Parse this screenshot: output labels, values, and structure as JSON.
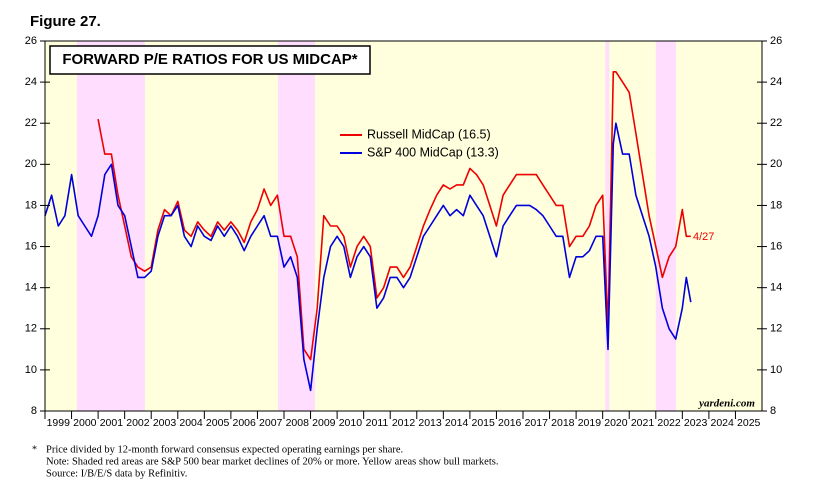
{
  "chart_data": {
    "type": "line",
    "figure_label": "Figure 27.",
    "title": "FORWARD P/E RATIOS FOR US MIDCAP*",
    "annotation": "4/27",
    "source_mark": "yardeni.com",
    "footnotes": [
      "*",
      "Price divided by 12-month forward consensus expected operating earnings per share.",
      "Note: Shaded red areas are S&P 500 bear market declines of 20% or more. Yellow areas show bull markets.",
      "Source: I/B/E/S data by Refinitiv."
    ],
    "xlim": [
      1999,
      2026
    ],
    "xticks": [
      1999,
      2000,
      2001,
      2002,
      2003,
      2004,
      2005,
      2006,
      2007,
      2008,
      2009,
      2010,
      2011,
      2012,
      2013,
      2014,
      2015,
      2016,
      2017,
      2018,
      2019,
      2020,
      2021,
      2022,
      2023,
      2024,
      2025
    ],
    "ylim": [
      8,
      26
    ],
    "yticks": [
      8,
      10,
      12,
      14,
      16,
      18,
      20,
      22,
      24,
      26
    ],
    "bull_color": "#ffffdd",
    "bear_color": "#ffddff",
    "bear_markets": [
      [
        2000.2,
        2002.76
      ],
      [
        2007.77,
        2009.17
      ],
      [
        2020.1,
        2020.25
      ],
      [
        2022.0,
        2022.76
      ]
    ],
    "series": [
      {
        "name": "Russell MidCap (16.5)",
        "color": "#ee0000",
        "x": [
          2001.0,
          2001.1,
          2001.25,
          2001.5,
          2001.75,
          2002.0,
          2002.25,
          2002.5,
          2002.75,
          2003.0,
          2003.25,
          2003.5,
          2003.75,
          2004.0,
          2004.25,
          2004.5,
          2004.75,
          2005.0,
          2005.25,
          2005.5,
          2005.75,
          2006.0,
          2006.25,
          2006.5,
          2006.75,
          2007.0,
          2007.25,
          2007.5,
          2007.75,
          2008.0,
          2008.25,
          2008.5,
          2008.75,
          2009.0,
          2009.25,
          2009.5,
          2009.75,
          2010.0,
          2010.25,
          2010.5,
          2010.75,
          2011.0,
          2011.25,
          2011.5,
          2011.75,
          2012.0,
          2012.25,
          2012.5,
          2012.75,
          2013.0,
          2013.25,
          2013.5,
          2013.75,
          2014.0,
          2014.25,
          2014.5,
          2014.75,
          2015.0,
          2015.25,
          2015.5,
          2015.75,
          2016.0,
          2016.25,
          2016.5,
          2016.75,
          2017.0,
          2017.25,
          2017.5,
          2017.75,
          2018.0,
          2018.25,
          2018.5,
          2018.75,
          2019.0,
          2019.25,
          2019.5,
          2019.75,
          2020.0,
          2020.2,
          2020.4,
          2020.5,
          2020.75,
          2021.0,
          2021.25,
          2021.5,
          2021.75,
          2022.0,
          2022.25,
          2022.5,
          2022.75,
          2023.0,
          2023.15,
          2023.32
        ],
        "values": [
          22.2,
          21.5,
          20.5,
          20.5,
          18.5,
          17.0,
          15.5,
          15.0,
          14.8,
          15.0,
          16.8,
          17.8,
          17.5,
          18.2,
          16.8,
          16.5,
          17.2,
          16.8,
          16.5,
          17.2,
          16.8,
          17.2,
          16.8,
          16.2,
          17.2,
          17.8,
          18.8,
          18.0,
          18.5,
          16.5,
          16.5,
          15.5,
          11.0,
          10.5,
          13.0,
          17.5,
          17.0,
          17.0,
          16.5,
          15.0,
          16.0,
          16.5,
          16.0,
          13.5,
          14.0,
          15.0,
          15.0,
          14.5,
          15.0,
          16.0,
          17.0,
          17.8,
          18.5,
          19.0,
          18.8,
          19.0,
          19.0,
          19.8,
          19.5,
          19.0,
          18.0,
          17.0,
          18.5,
          19.0,
          19.5,
          19.5,
          19.5,
          19.5,
          19.0,
          18.5,
          18.0,
          18.0,
          16.0,
          16.5,
          16.5,
          17.0,
          18.0,
          18.5,
          12.0,
          24.5,
          24.5,
          24.0,
          23.5,
          21.5,
          19.5,
          17.5,
          16.0,
          14.5,
          15.5,
          16.0,
          17.8,
          16.5,
          16.5
        ]
      },
      {
        "name": "S&P 400 MidCap (13.3)",
        "color": "#0000dd",
        "x": [
          1999.0,
          1999.25,
          1999.5,
          1999.75,
          2000.0,
          2000.25,
          2000.5,
          2000.75,
          2001.0,
          2001.25,
          2001.5,
          2001.75,
          2002.0,
          2002.25,
          2002.5,
          2002.75,
          2003.0,
          2003.25,
          2003.5,
          2003.75,
          2004.0,
          2004.25,
          2004.5,
          2004.75,
          2005.0,
          2005.25,
          2005.5,
          2005.75,
          2006.0,
          2006.25,
          2006.5,
          2006.75,
          2007.0,
          2007.25,
          2007.5,
          2007.75,
          2008.0,
          2008.25,
          2008.5,
          2008.75,
          2009.0,
          2009.25,
          2009.5,
          2009.75,
          2010.0,
          2010.25,
          2010.5,
          2010.75,
          2011.0,
          2011.25,
          2011.5,
          2011.75,
          2012.0,
          2012.25,
          2012.5,
          2012.75,
          2013.0,
          2013.25,
          2013.5,
          2013.75,
          2014.0,
          2014.25,
          2014.5,
          2014.75,
          2015.0,
          2015.25,
          2015.5,
          2015.75,
          2016.0,
          2016.25,
          2016.5,
          2016.75,
          2017.0,
          2017.25,
          2017.5,
          2017.75,
          2018.0,
          2018.25,
          2018.5,
          2018.75,
          2019.0,
          2019.25,
          2019.5,
          2019.75,
          2020.0,
          2020.2,
          2020.4,
          2020.5,
          2020.75,
          2021.0,
          2021.25,
          2021.5,
          2021.75,
          2022.0,
          2022.25,
          2022.5,
          2022.75,
          2023.0,
          2023.15,
          2023.32
        ],
        "values": [
          17.5,
          18.5,
          17.0,
          17.5,
          19.5,
          17.5,
          17.0,
          16.5,
          17.5,
          19.5,
          20.0,
          18.0,
          17.5,
          16.0,
          14.5,
          14.5,
          14.8,
          16.5,
          17.5,
          17.5,
          18.0,
          16.5,
          16.0,
          17.0,
          16.5,
          16.3,
          17.0,
          16.5,
          17.0,
          16.5,
          15.8,
          16.5,
          17.0,
          17.5,
          16.5,
          16.5,
          15.0,
          15.5,
          14.5,
          10.5,
          9.0,
          12.0,
          14.5,
          16.0,
          16.5,
          16.0,
          14.5,
          15.5,
          16.0,
          15.5,
          13.0,
          13.5,
          14.5,
          14.5,
          14.0,
          14.5,
          15.5,
          16.5,
          17.0,
          17.5,
          18.0,
          17.5,
          17.8,
          17.5,
          18.5,
          18.0,
          17.5,
          16.5,
          15.5,
          17.0,
          17.5,
          18.0,
          18.0,
          18.0,
          17.8,
          17.5,
          17.0,
          16.5,
          16.5,
          14.5,
          15.5,
          15.5,
          15.8,
          16.5,
          16.5,
          11.0,
          21.0,
          22.0,
          20.5,
          20.5,
          18.5,
          17.5,
          16.5,
          15.0,
          13.0,
          12.0,
          11.5,
          13.0,
          14.5,
          13.3
        ]
      }
    ]
  }
}
